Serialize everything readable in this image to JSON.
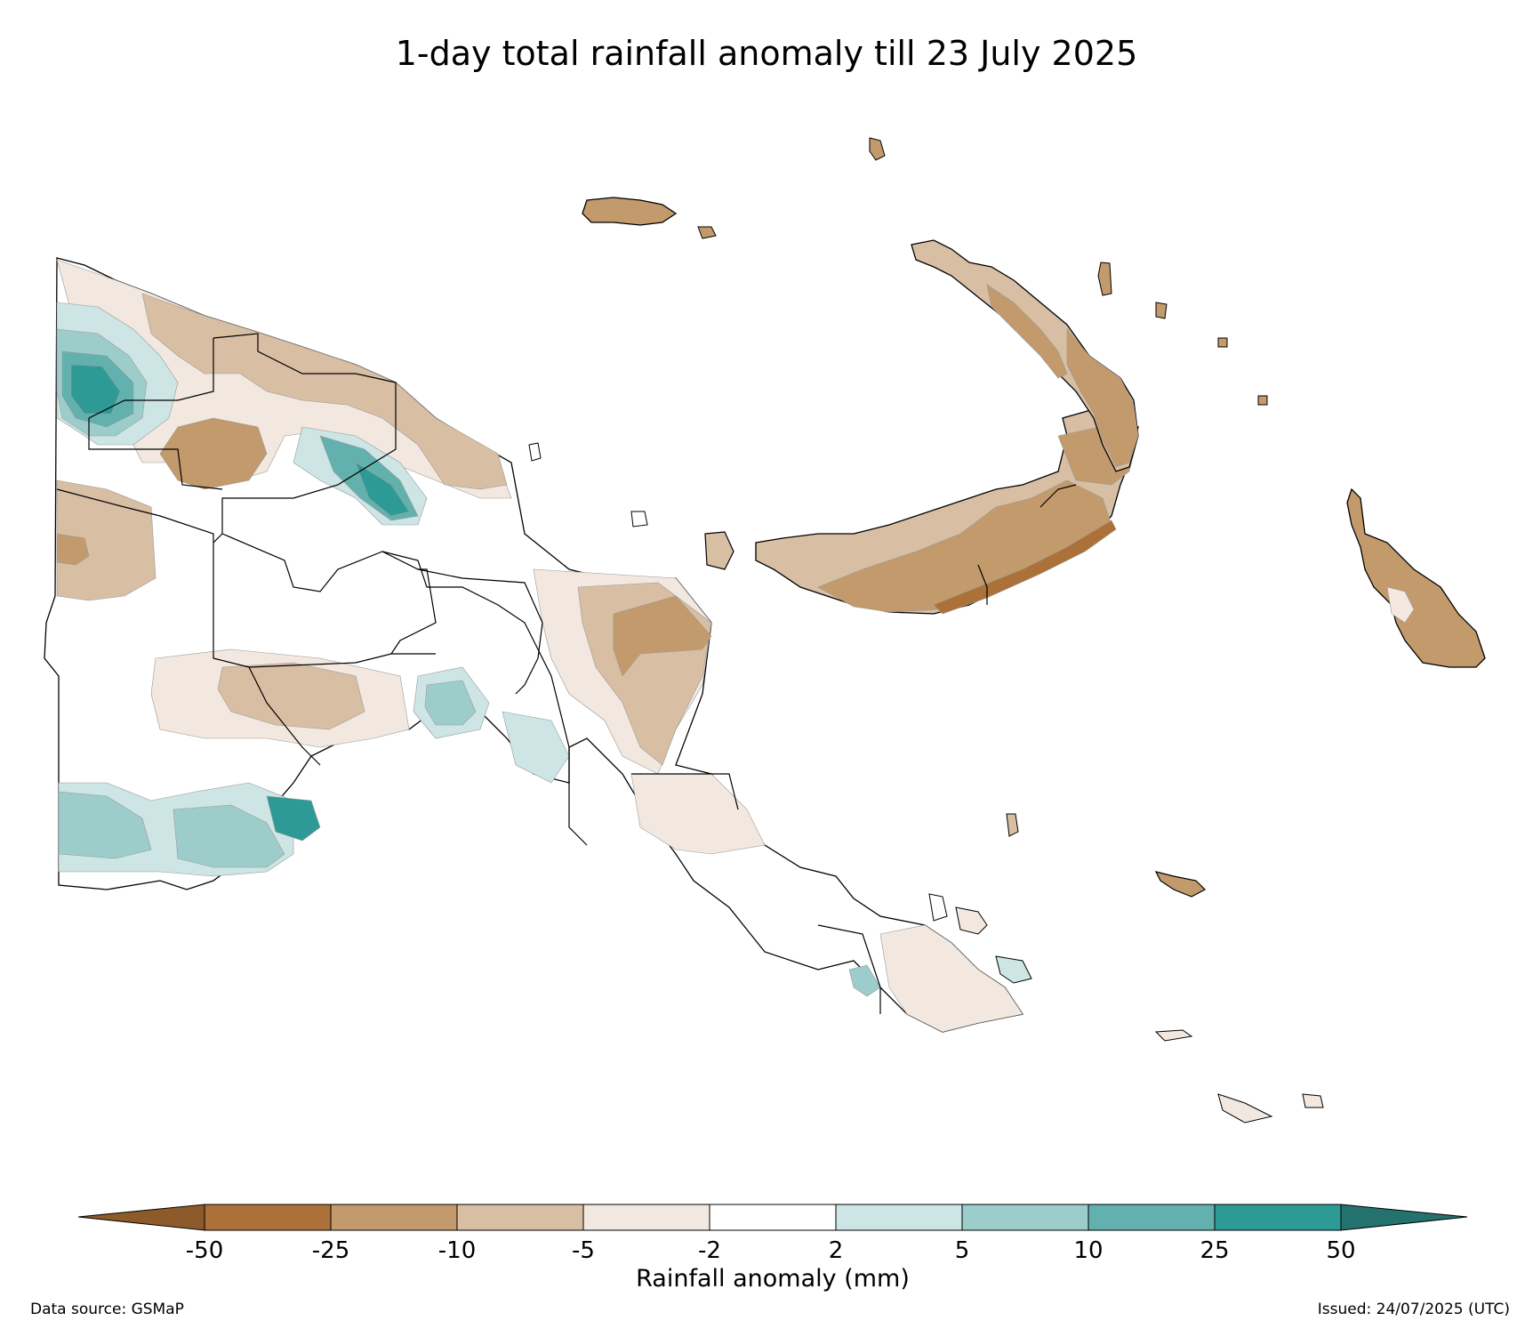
{
  "title": "1-day total rainfall anomaly till 23 July 2025",
  "colorbar": {
    "label": "Rainfall anomaly (mm)",
    "ticks": [
      "-50",
      "-25",
      "-10",
      "-5",
      "-2",
      "2",
      "5",
      "10",
      "25",
      "50"
    ],
    "colors": [
      "#8c5a2b",
      "#ab7138",
      "#c29a6c",
      "#d8bea3",
      "#f2e8df",
      "#ffffff",
      "#cde5e4",
      "#9ccdcb",
      "#62b1ae",
      "#2e9a95",
      "#24726e"
    ],
    "extend": "both"
  },
  "footer": {
    "data_source": "Data source: GSMaP",
    "issued": "Issued: 24/07/2025 (UTC)"
  }
}
